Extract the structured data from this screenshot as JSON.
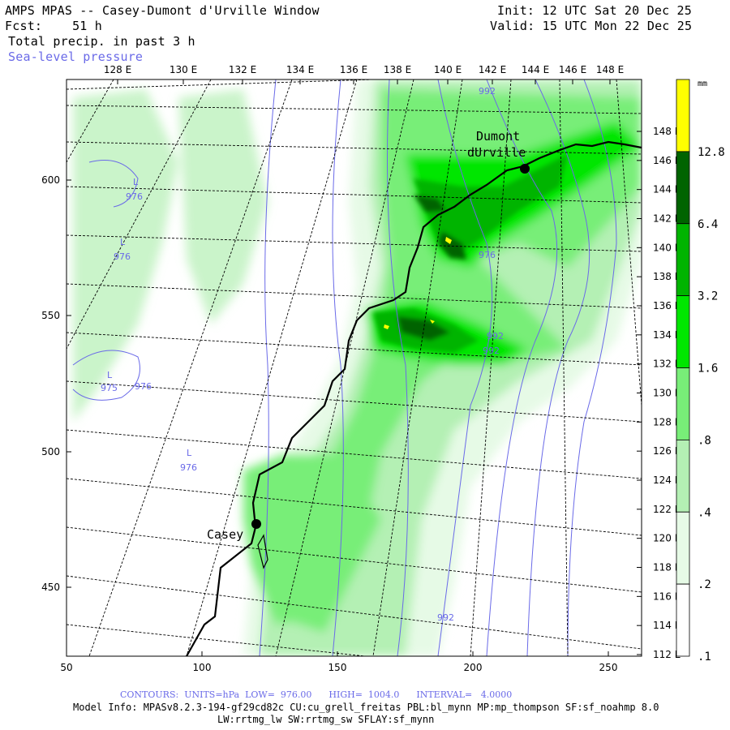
{
  "header": {
    "title": "AMPS MPAS -- Casey-Dumont d'Urville Window",
    "forecast": "Fcst:    51 h",
    "field": "Total precip. in past 3 h",
    "overlay": "Sea-level pressure",
    "init": "Init: 12 UTC Sat 20 Dec 25",
    "valid": "Valid: 15 UTC Mon 22 Dec 25"
  },
  "top_axis_labels": [
    "128 E",
    "130 E",
    "132 E",
    "134 E",
    "136 E",
    "138 E",
    "140 E",
    "142 E",
    "144 E",
    "146 E",
    "148 E"
  ],
  "left_axis_labels": [
    "600",
    "550",
    "500",
    "450"
  ],
  "bottom_axis_labels": [
    "50",
    "100",
    "150",
    "200",
    "250"
  ],
  "right_axis_labels": [
    "148 E",
    "146 E",
    "144 E",
    "142 E",
    "140 E",
    "138 E",
    "136 E",
    "134 E",
    "132 E",
    "130 E",
    "128 E",
    "126 E",
    "124 E",
    "122 E",
    "120 E",
    "118 E",
    "116 E",
    "114 E",
    "112 E"
  ],
  "places": {
    "dumont": "Dumont d'Urville",
    "casey": "Casey"
  },
  "pressure_labels": [
    "992",
    "976",
    "L",
    "976",
    "L",
    "976",
    "L",
    "975",
    "976",
    "L",
    "976",
    "992",
    "992",
    "992"
  ],
  "colorbar": {
    "unit": "mm",
    "levels": [
      "12.8",
      "6.4",
      "3.2",
      "1.6",
      ".8",
      ".4",
      ".2",
      ".1"
    ],
    "colors": [
      "#ffff00",
      "#006400",
      "#00b400",
      "#00e600",
      "#78ee78",
      "#b4f0b4",
      "#e6fae6",
      "#ffffff"
    ]
  },
  "footer": {
    "contours": "CONTOURS:  UNITS=hPa  LOW=  976.00      HIGH=  1004.0      INTERVAL=   4.0000",
    "model_info": "Model Info: MPASv8.2.3-194-gf29cd82c CU:cu_grell_freitas PBL:bl_mynn MP:mp_thompson SF:sf_noahmp 8.0",
    "model_info2": "LW:rrtmg_lw SW:rrtmg_sw SFLAY:sf_mynn"
  }
}
